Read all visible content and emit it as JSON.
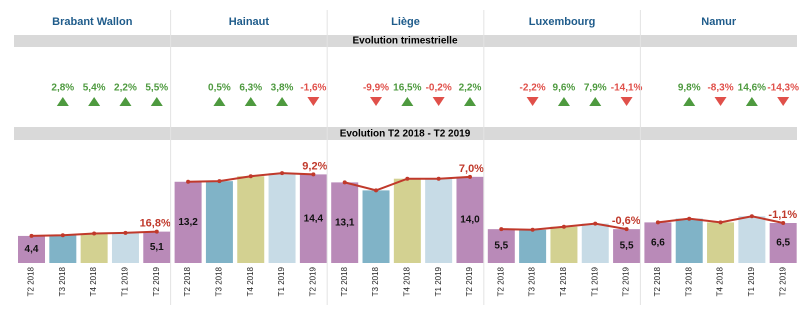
{
  "sections": [
    "Evolution trimestrielle",
    "Evolution T2 2018 - T2 2019"
  ],
  "up_color": "#4e9a3f",
  "down_color": "#e0504a",
  "chart_data": [
    {
      "type": "bar",
      "title": "Brabant Wallon",
      "changes": [
        2.8,
        5.4,
        2.2,
        5.5
      ],
      "change_labels": [
        "2,8%",
        "5,4%",
        "2,2%",
        "5,5%"
      ],
      "categories": [
        "T2 2018",
        "T3 2018",
        "T4 2018",
        "T1 2019",
        "T2 2019"
      ],
      "values": [
        4.4,
        4.5,
        4.8,
        4.9,
        5.1
      ],
      "value_labels": [
        "4,4",
        null,
        null,
        null,
        "5,1"
      ],
      "colors": [
        "#b98ab8",
        "#80b3c7",
        "#d3d191",
        "#c7dbe6",
        "#b98ab8"
      ],
      "line_color": "#c0392b",
      "growth": 16.8,
      "growth_label": "16,8%",
      "ylim": [
        0,
        19.5
      ]
    },
    {
      "type": "bar",
      "title": "Hainaut",
      "changes": [
        0.5,
        6.3,
        3.8,
        -1.6
      ],
      "change_labels": [
        "0,5%",
        "6,3%",
        "3,8%",
        "-1,6%"
      ],
      "categories": [
        "T2 2018",
        "T3 2018",
        "T4 2018",
        "T1 2019",
        "T2 2019"
      ],
      "values": [
        13.2,
        13.3,
        14.1,
        14.6,
        14.4
      ],
      "value_labels": [
        "13,2",
        null,
        null,
        null,
        "14,4"
      ],
      "colors": [
        "#b98ab8",
        "#80b3c7",
        "#d3d191",
        "#c7dbe6",
        "#b98ab8"
      ],
      "line_color": "#c0392b",
      "growth": 9.2,
      "growth_label": "9,2%",
      "ylim": [
        0,
        19.5
      ]
    },
    {
      "type": "bar",
      "title": "Liège",
      "changes": [
        -9.9,
        16.5,
        -0.2,
        2.2
      ],
      "change_labels": [
        "-9,9%",
        "16,5%",
        "-0,2%",
        "2,2%"
      ],
      "categories": [
        "T2 2018",
        "T3 2018",
        "T4 2018",
        "T1 2019",
        "T2 2019"
      ],
      "values": [
        13.1,
        11.8,
        13.7,
        13.7,
        14.0
      ],
      "value_labels": [
        "13,1",
        null,
        null,
        null,
        "14,0"
      ],
      "colors": [
        "#b98ab8",
        "#80b3c7",
        "#d3d191",
        "#c7dbe6",
        "#b98ab8"
      ],
      "line_color": "#c0392b",
      "growth": 7.0,
      "growth_label": "7,0%",
      "ylim": [
        0,
        19.5
      ]
    },
    {
      "type": "bar",
      "title": "Luxembourg",
      "changes": [
        -2.2,
        9.6,
        7.9,
        -14.1
      ],
      "change_labels": [
        "-2,2%",
        "9,6%",
        "7,9%",
        "-14,1%"
      ],
      "categories": [
        "T2 2018",
        "T3 2018",
        "T4 2018",
        "T1 2019",
        "T2 2019"
      ],
      "values": [
        5.5,
        5.4,
        5.9,
        6.4,
        5.5
      ],
      "value_labels": [
        "5,5",
        null,
        null,
        null,
        "5,5"
      ],
      "colors": [
        "#b98ab8",
        "#80b3c7",
        "#d3d191",
        "#c7dbe6",
        "#b98ab8"
      ],
      "line_color": "#c0392b",
      "growth": -0.6,
      "growth_label": "-0,6%",
      "ylim": [
        0,
        19.5
      ]
    },
    {
      "type": "bar",
      "title": "Namur",
      "changes": [
        9.8,
        -8.3,
        14.6,
        -14.3
      ],
      "change_labels": [
        "9,8%",
        "-8,3%",
        "14,6%",
        "-14,3%"
      ],
      "categories": [
        "T2 2018",
        "T3 2018",
        "T4 2018",
        "T1 2019",
        "T2 2019"
      ],
      "values": [
        6.6,
        7.2,
        6.6,
        7.6,
        6.5
      ],
      "value_labels": [
        "6,6",
        null,
        null,
        null,
        "6,5"
      ],
      "colors": [
        "#b98ab8",
        "#80b3c7",
        "#d3d191",
        "#c7dbe6",
        "#b98ab8"
      ],
      "line_color": "#c0392b",
      "growth": -1.1,
      "growth_label": "-1,1%",
      "ylim": [
        0,
        19.5
      ]
    }
  ]
}
